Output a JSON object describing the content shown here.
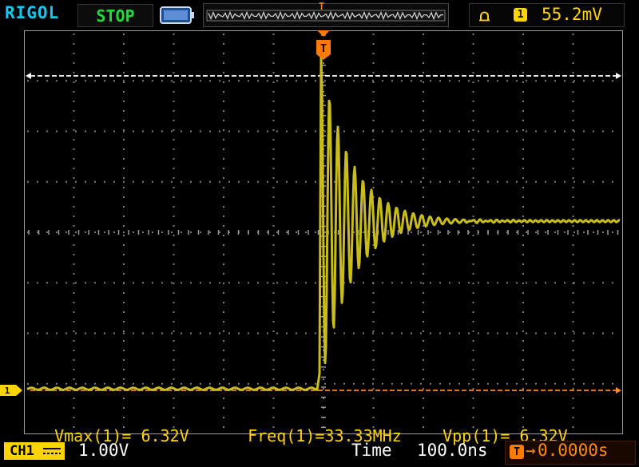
{
  "header": {
    "brand": "RIGOL",
    "run_state": "STOP",
    "trigger": {
      "edge_icon": "rising-edge-icon",
      "channel": "1",
      "level": "55.2mV"
    },
    "memory_marker": "T"
  },
  "screen": {
    "trigger_marker": "T",
    "channel_marker": "1",
    "measurements": [
      {
        "label": "Vmax(1)",
        "value": "= 6.32V"
      },
      {
        "label": "Freq(1)",
        "value": "=33.33MHz"
      },
      {
        "label": "Vpp(1)",
        "value": "= 6.32V"
      }
    ]
  },
  "footer": {
    "channel_label": "CH1",
    "volts_per_div": "1.00V",
    "time_label": "Time",
    "time_per_div": "100.0ns",
    "trigger_offset_badge": "T",
    "trigger_offset_arrow": "→",
    "trigger_offset": "0.0000s"
  },
  "colors": {
    "brand": "#19c6ee",
    "stop": "#23d93b",
    "channel1": "#ffd400",
    "trace": "#c9bd1c",
    "trigger_marker": "#ff7a00",
    "grid": "#8a8a8a"
  }
}
